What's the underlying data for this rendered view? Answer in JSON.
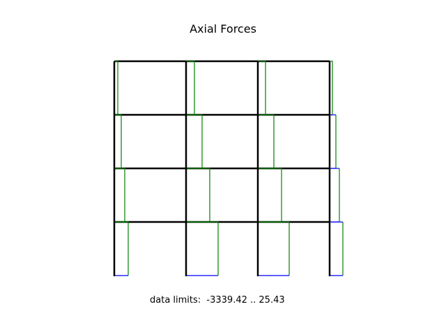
{
  "title": "Axial Forces",
  "limits_label": "data limits:  -3339.42 .. 25.43",
  "frame": {
    "bays": 3,
    "stories": 4
  },
  "colors": {
    "frame": "#000000",
    "compression": "#008000",
    "tension": "#0000ff"
  }
}
